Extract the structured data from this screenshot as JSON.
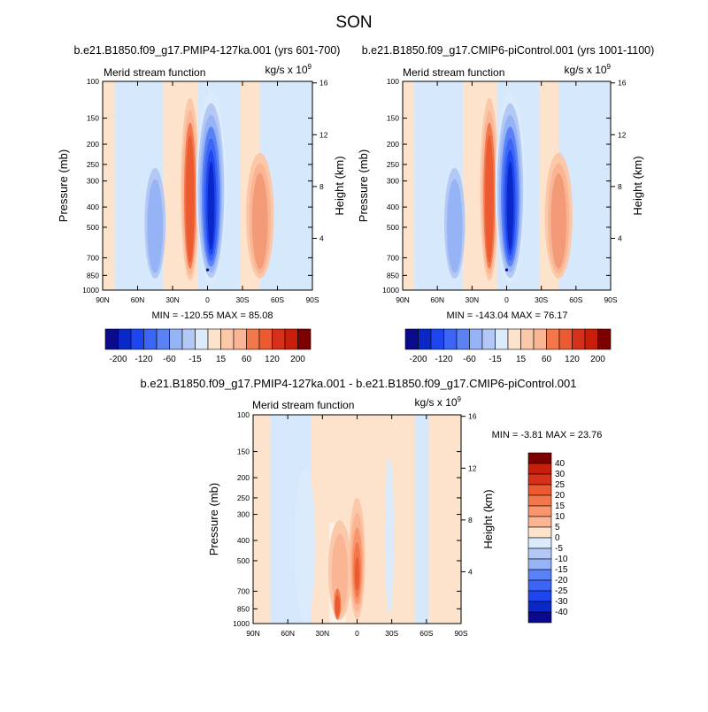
{
  "page": {
    "title": "SON",
    "diff_title": "b.e21.B1850.f09_g17.PMIP4-127ka.001 - b.e21.B1850.f09_g17.CMIP6-piControl.001"
  },
  "colors": {
    "deep_blue": "#0a0a8c",
    "blue": "#1e46f0",
    "mid_blue": "#5a82f5",
    "light_blue": "#b4c8f5",
    "pale_blue": "#d6e8fc",
    "pale_orange": "#fde3cc",
    "light_orange": "#f9b594",
    "orange": "#f2784b",
    "red": "#d6301a",
    "dark_red": "#7d0000"
  },
  "chart_data": [
    {
      "type": "heatmap",
      "id": "top-left",
      "title": "b.e21.B1850.f09_g17.PMIP4-127ka.001 (yrs 601-700)",
      "left_label": "Merid stream function",
      "units_label": "kg/s x 10",
      "units_exp": "9",
      "xlabel": "",
      "ylabel": "Pressure (mb)",
      "ylabel_right": "Height (km)",
      "x_ticks": [
        "90N",
        "60N",
        "30N",
        "0",
        "30S",
        "60S",
        "90S"
      ],
      "y_ticks": [
        "100",
        "150",
        "200",
        "250",
        "300",
        "400",
        "500",
        "700",
        "850",
        "1000"
      ],
      "y_right_ticks": [
        "16",
        "12",
        "8",
        "4"
      ],
      "xlim": [
        90,
        -90
      ],
      "ylim": [
        1000,
        100
      ],
      "stats": "MIN = -120.55  MAX =  85.08",
      "stats_min": -120.55,
      "stats_max": 85.08,
      "cells": [
        {
          "lat": -45,
          "p": 400,
          "value": 40
        },
        {
          "lat": 15,
          "p": 450,
          "value": 60
        },
        {
          "lat": -3,
          "p": 450,
          "value": -120.55
        },
        {
          "lat": 45,
          "p": 500,
          "value": -30
        }
      ],
      "colorbar": {
        "orientation": "horizontal",
        "labels": [
          "-200",
          "-120",
          "-60",
          "-15",
          "15",
          "60",
          "120",
          "200"
        ]
      }
    },
    {
      "type": "heatmap",
      "id": "top-right",
      "title": "b.e21.B1850.f09_g17.CMIP6-piControl.001 (yrs 1001-1100)",
      "left_label": "Merid stream function",
      "units_label": "kg/s x 10",
      "units_exp": "9",
      "xlabel": "",
      "ylabel": "Pressure (mb)",
      "ylabel_right": "Height (km)",
      "x_ticks": [
        "90N",
        "60N",
        "30N",
        "0",
        "30S",
        "60S",
        "90S"
      ],
      "y_ticks": [
        "100",
        "150",
        "200",
        "250",
        "300",
        "400",
        "500",
        "700",
        "850",
        "1000"
      ],
      "y_right_ticks": [
        "16",
        "12",
        "8",
        "4"
      ],
      "xlim": [
        90,
        -90
      ],
      "ylim": [
        1000,
        100
      ],
      "stats": "MIN = -143.04  MAX =  76.17",
      "stats_min": -143.04,
      "stats_max": 76.17,
      "cells": [
        {
          "lat": -45,
          "p": 400,
          "value": 40
        },
        {
          "lat": 15,
          "p": 450,
          "value": 60
        },
        {
          "lat": -3,
          "p": 450,
          "value": -143.04
        },
        {
          "lat": 45,
          "p": 500,
          "value": -30
        }
      ],
      "colorbar": {
        "orientation": "horizontal",
        "labels": [
          "-200",
          "-120",
          "-60",
          "-15",
          "15",
          "60",
          "120",
          "200"
        ]
      }
    },
    {
      "type": "heatmap",
      "id": "difference",
      "title": "",
      "left_label": "Merid stream function",
      "units_label": "kg/s x 10",
      "units_exp": "9",
      "xlabel": "",
      "ylabel": "Pressure (mb)",
      "ylabel_right": "Height (km)",
      "x_ticks": [
        "90N",
        "60N",
        "30N",
        "0",
        "30S",
        "60S",
        "90S"
      ],
      "y_ticks": [
        "100",
        "150",
        "200",
        "250",
        "300",
        "400",
        "500",
        "700",
        "850",
        "1000"
      ],
      "y_right_ticks": [
        "16",
        "12",
        "8",
        "4"
      ],
      "xlim": [
        90,
        -90
      ],
      "ylim": [
        1000,
        100
      ],
      "stats": "MIN =  -3.81  MAX =  23.76",
      "stats_min": -3.81,
      "stats_max": 23.76,
      "cells": [
        {
          "lat": 0,
          "p": 700,
          "value": 23.76
        },
        {
          "lat": 15,
          "p": 800,
          "value": 10
        },
        {
          "lat": 45,
          "p": 650,
          "value": -3.81
        }
      ],
      "colorbar": {
        "orientation": "vertical",
        "labels": [
          "40",
          "30",
          "25",
          "20",
          "15",
          "10",
          "5",
          "0",
          "-5",
          "-10",
          "-15",
          "-20",
          "-25",
          "-30",
          "-40"
        ]
      }
    }
  ]
}
